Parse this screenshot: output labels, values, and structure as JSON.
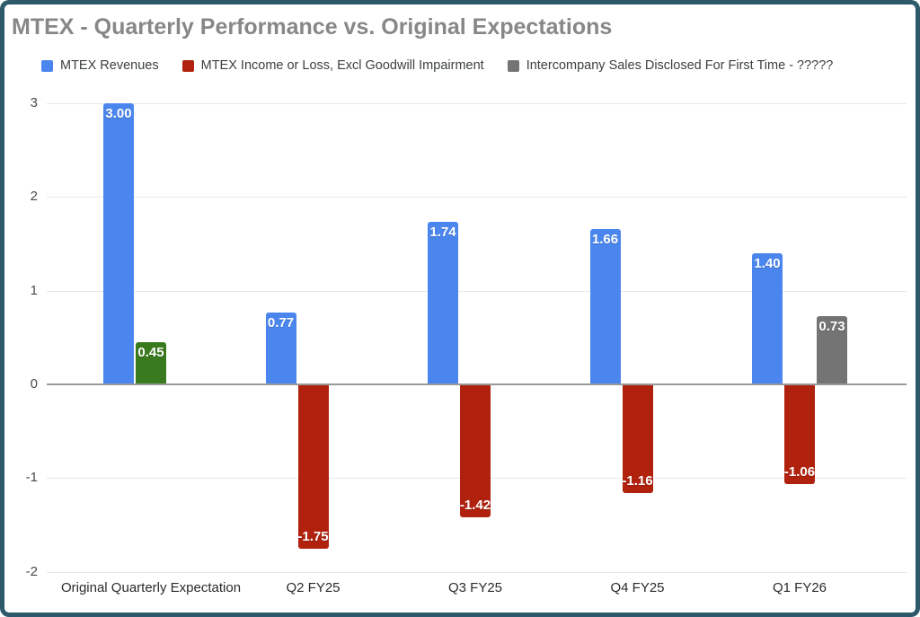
{
  "chart_data": {
    "type": "bar",
    "title": "MTEX - Quarterly Performance vs. Original Expectations",
    "categories": [
      "Original Quarterly Expectation",
      "Q2 FY25",
      "Q3 FY25",
      "Q4 FY25",
      "Q1 FY26"
    ],
    "series": [
      {
        "name": "MTEX Revenues",
        "color": "#4b86ee",
        "values": [
          3.0,
          0.77,
          1.74,
          1.66,
          1.4
        ],
        "labels": [
          "3.00",
          "0.77",
          "1.74",
          "1.66",
          "1.40"
        ]
      },
      {
        "name": "MTEX Income or Loss, Excl Goodwill Impairment",
        "color": "#b1220e",
        "values": [
          0.45,
          -1.75,
          -1.42,
          -1.16,
          -1.06
        ],
        "labels": [
          "0.45",
          "-1.75",
          "-1.42",
          "-1.16",
          "-1.06"
        ],
        "point_colors": {
          "0": "#3a7a1e"
        }
      },
      {
        "name": "Intercompany Sales Disclosed For First Time - ?????",
        "color": "#747474",
        "values": [
          null,
          null,
          null,
          null,
          0.73
        ],
        "labels": [
          null,
          null,
          null,
          null,
          "0.73"
        ]
      }
    ],
    "yticks": [
      3,
      2,
      1,
      0,
      -1,
      -2
    ],
    "ytick_labels": [
      "3",
      "2",
      "1",
      "0",
      "-1",
      "-2"
    ],
    "ylim": [
      -2,
      3
    ],
    "grid": true,
    "legend_position": "top",
    "frame_color": "#2c5a6b"
  }
}
